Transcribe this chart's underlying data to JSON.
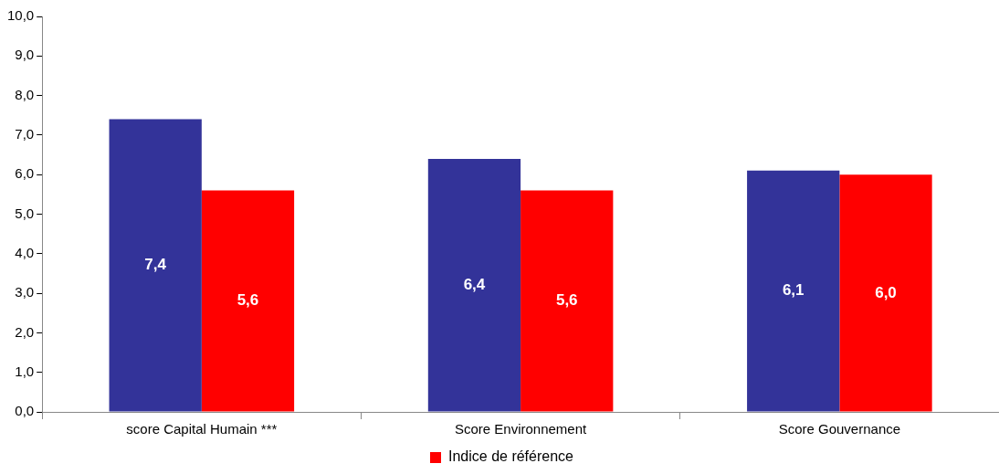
{
  "chart_data": {
    "type": "bar",
    "categories": [
      "score Capital Humain ***",
      "Score Environnement",
      "Score Gouvernance"
    ],
    "series": [
      {
        "color": "#333399",
        "values": [
          7.4,
          6.4,
          6.1
        ],
        "value_labels": [
          "7,4",
          "6,4",
          "6,1"
        ]
      },
      {
        "name": "Indice de référence",
        "color": "#ff0000",
        "values": [
          5.6,
          5.6,
          6.0
        ],
        "value_labels": [
          "5,6",
          "5,6",
          "6,0"
        ]
      }
    ],
    "ylim": [
      0,
      10
    ],
    "yticks": [
      {
        "value": 0,
        "label": "0,0"
      },
      {
        "value": 1,
        "label": "1,0"
      },
      {
        "value": 2,
        "label": "2,0"
      },
      {
        "value": 3,
        "label": "3,0"
      },
      {
        "value": 4,
        "label": "4,0"
      },
      {
        "value": 5,
        "label": "5,0"
      },
      {
        "value": 6,
        "label": "6,0"
      },
      {
        "value": 7,
        "label": "7,0"
      },
      {
        "value": 8,
        "label": "8,0"
      },
      {
        "value": 9,
        "label": "9,0"
      },
      {
        "value": 10,
        "label": "10,0"
      }
    ],
    "grid": false,
    "legend": "bottom"
  }
}
